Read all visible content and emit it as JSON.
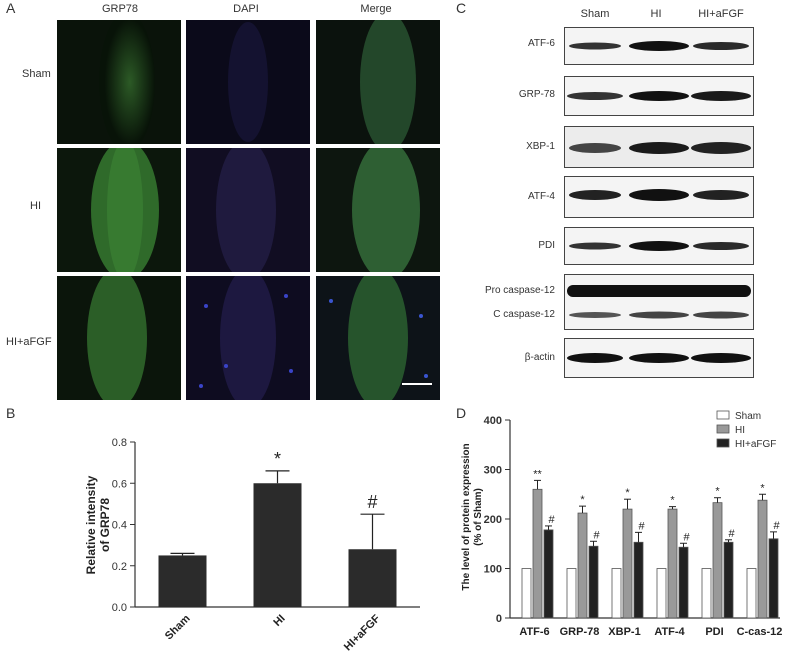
{
  "panel_labels": {
    "a": "A",
    "b": "B",
    "c": "C",
    "d": "D"
  },
  "panel_a": {
    "columns": [
      "GRP78",
      "DAPI",
      "Merge"
    ],
    "rows": [
      "Sham",
      "HI",
      "HI+aFGF"
    ]
  },
  "panel_c": {
    "columns": [
      "Sham",
      "HI",
      "HI+aFGF"
    ],
    "blots": [
      "ATF-6",
      "GRP-78",
      "XBP-1",
      "ATF-4",
      "PDI",
      "Pro caspase-12",
      "C caspase-12",
      "β-actin"
    ]
  },
  "chart_data": [
    {
      "type": "bar",
      "panel": "B",
      "categories": [
        "Sham",
        "HI",
        "HI+aFGF"
      ],
      "values": [
        0.25,
        0.6,
        0.28
      ],
      "errors": [
        0.01,
        0.06,
        0.17
      ],
      "annotations": [
        "",
        "*",
        "#"
      ],
      "ylabel": "Relative intensity of GRP78",
      "ylim": [
        0.0,
        0.8
      ],
      "yticks": [
        "0.0",
        "0.2",
        "0.4",
        "0.6",
        "0.8"
      ],
      "bar_color": "#2b2b2b"
    },
    {
      "type": "bar",
      "panel": "D",
      "categories": [
        "ATF-6",
        "GRP-78",
        "XBP-1",
        "ATF-4",
        "PDI",
        "C-cas-12"
      ],
      "series": [
        {
          "name": "Sham",
          "values": [
            100,
            100,
            100,
            100,
            100,
            100
          ],
          "errors": [
            0,
            0,
            0,
            0,
            0,
            0
          ],
          "annotations": [
            "",
            "",
            "",
            "",
            "",
            ""
          ],
          "color": "#ffffff"
        },
        {
          "name": "HI",
          "values": [
            260,
            212,
            220,
            220,
            233,
            238
          ],
          "errors": [
            18,
            14,
            20,
            5,
            10,
            12
          ],
          "annotations": [
            "**",
            "*",
            "*",
            "*",
            "*",
            "*"
          ],
          "color": "#999999"
        },
        {
          "name": "HI+aFGF",
          "values": [
            178,
            145,
            153,
            143,
            153,
            160
          ],
          "errors": [
            8,
            10,
            20,
            8,
            5,
            14
          ],
          "annotations": [
            "#",
            "#",
            "#",
            "#",
            "#",
            "#"
          ],
          "color": "#222222"
        }
      ],
      "ylabel": "The level of protein expression (% of Sham)",
      "ylim": [
        0,
        400
      ],
      "yticks": [
        "0",
        "100",
        "200",
        "300",
        "400"
      ]
    }
  ]
}
